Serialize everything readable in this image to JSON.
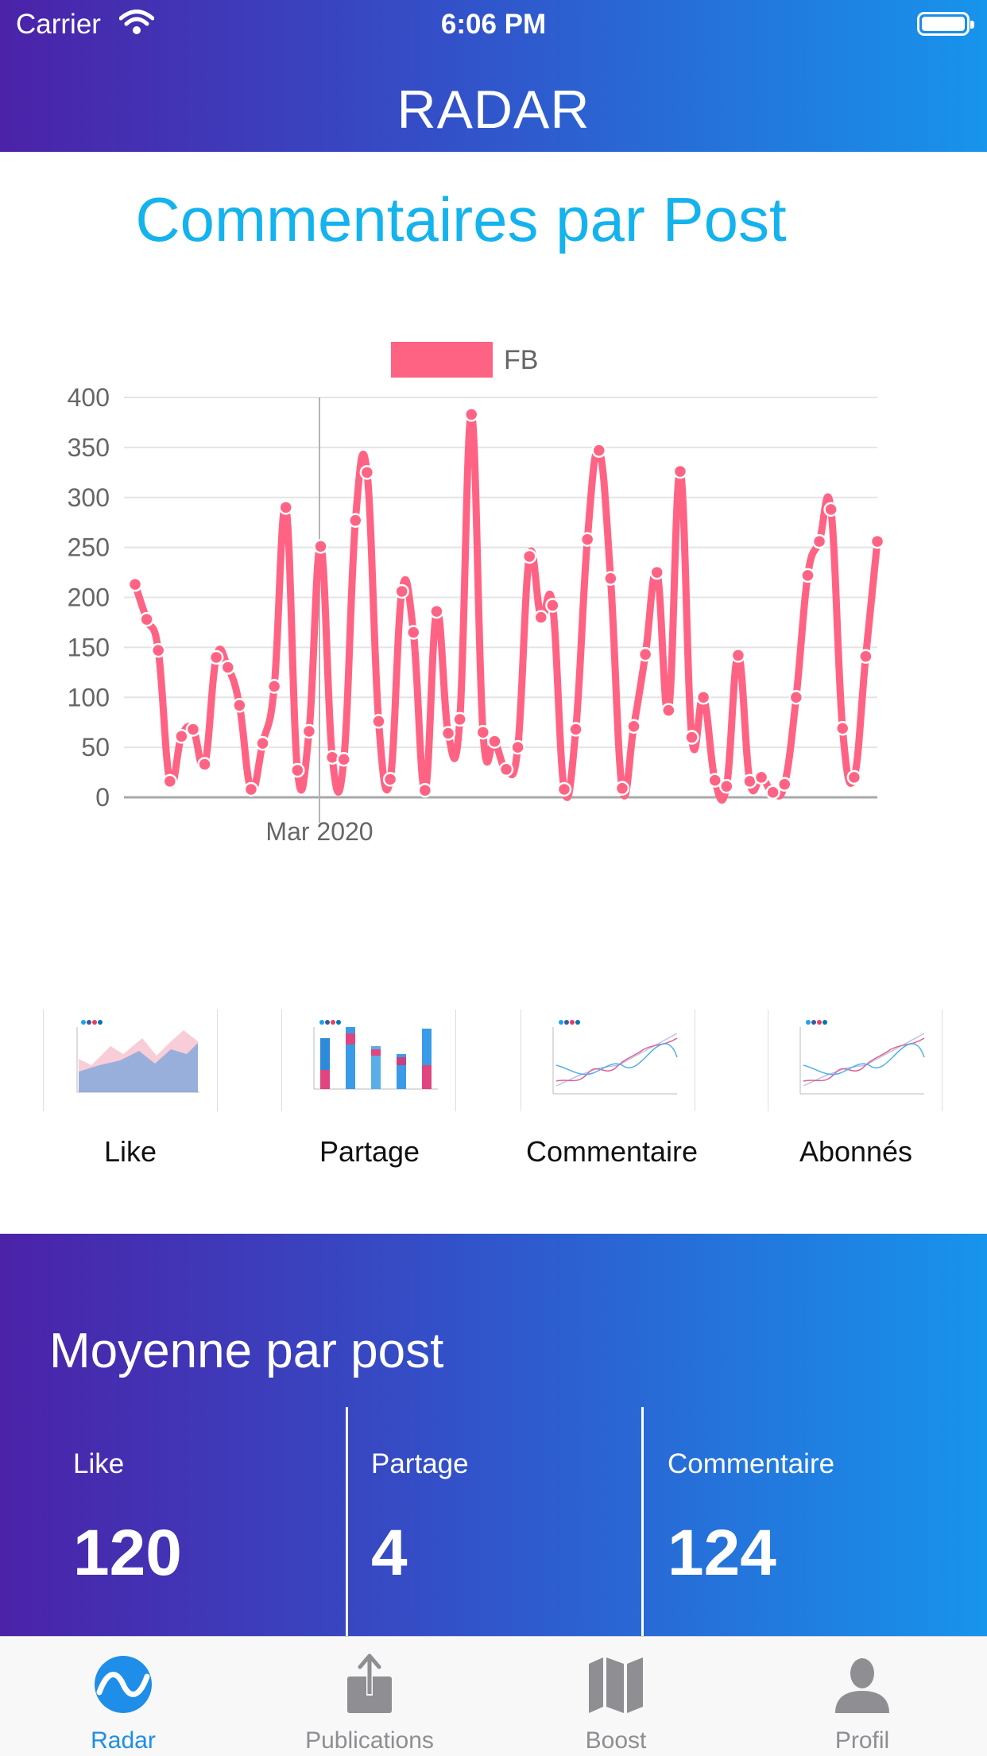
{
  "status_bar": {
    "carrier": "Carrier",
    "time": "6:06 PM"
  },
  "app_title": "RADAR",
  "chart_title": "Commentaires par Post",
  "chart_data": {
    "type": "line",
    "title": "Commentaires par Post",
    "xlabel": "",
    "ylabel": "",
    "x_tick_labels": [
      "Mar 2020"
    ],
    "y_tick_labels": [
      "0",
      "50",
      "100",
      "150",
      "200",
      "250",
      "300",
      "350",
      "400"
    ],
    "ylim": [
      0,
      400
    ],
    "grid": true,
    "legend": "top-center",
    "series": [
      {
        "name": "FB",
        "color": "#ff6384",
        "values": [
          213,
          178,
          147,
          16,
          61,
          68,
          33,
          140,
          130,
          92,
          8,
          54,
          111,
          290,
          27,
          66,
          251,
          40,
          38,
          277,
          325,
          76,
          18,
          206,
          165,
          7,
          186,
          64,
          78,
          383,
          65,
          56,
          28,
          50,
          241,
          180,
          192,
          8,
          68,
          258,
          347,
          219,
          9,
          71,
          143,
          225,
          87,
          326,
          60,
          100,
          17,
          11,
          142,
          16,
          20,
          5,
          13,
          100,
          222,
          256,
          288,
          69,
          20,
          141,
          256
        ]
      }
    ]
  },
  "thumbnails": [
    {
      "label": "Like"
    },
    {
      "label": "Partage"
    },
    {
      "label": "Commentaire"
    },
    {
      "label": "Abonnés"
    }
  ],
  "stats": {
    "title": "Moyenne par post",
    "items": [
      {
        "label": "Like",
        "value": "120"
      },
      {
        "label": "Partage",
        "value": "4"
      },
      {
        "label": "Commentaire",
        "value": "124"
      }
    ]
  },
  "tabs": [
    {
      "label": "Radar",
      "icon": "radar-icon",
      "active": true
    },
    {
      "label": "Publications",
      "icon": "share-icon",
      "active": false
    },
    {
      "label": "Boost",
      "icon": "map-icon",
      "active": false
    },
    {
      "label": "Profil",
      "icon": "person-icon",
      "active": false
    }
  ],
  "colors": {
    "gradient_start": "#4b22a8",
    "gradient_end": "#1794ec",
    "chart_title": "#14b3ee",
    "series": "#ff6384",
    "tab_active": "#1e8ee8",
    "tab_inactive": "#8e8e93"
  }
}
